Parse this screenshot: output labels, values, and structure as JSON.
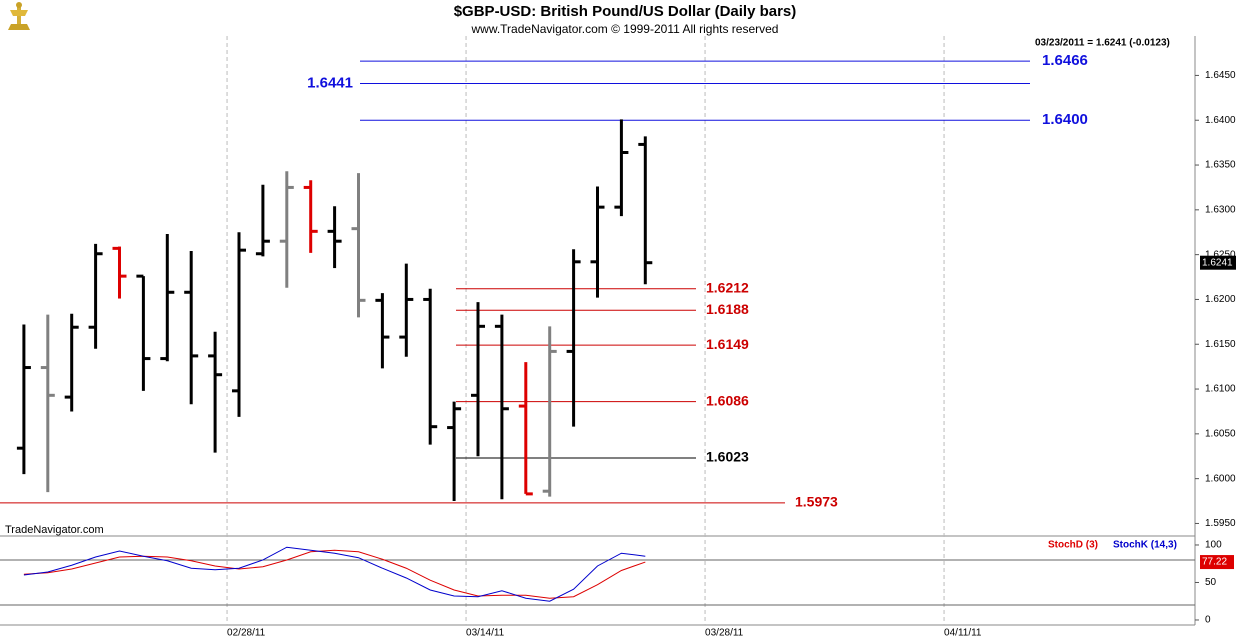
{
  "chart_data": [
    {
      "type": "ohlc",
      "title": "$GBP-USD:  British Pound/US Dollar  (Daily bars)",
      "subtitle": "www.TradeNavigator.com © 1999-2011 All rights reserved",
      "info": "03/23/2011 = 1.6241 (-0.0123)",
      "watermark": "TradeNavigator.com",
      "x": [
        "02/15/11",
        "02/16/11",
        "02/17/11",
        "02/18/11",
        "02/21/11",
        "02/22/11",
        "02/23/11",
        "02/24/11",
        "02/25/11",
        "02/28/11",
        "03/01/11",
        "03/02/11",
        "03/03/11",
        "03/04/11",
        "03/07/11",
        "03/08/11",
        "03/09/11",
        "03/10/11",
        "03/11/11",
        "03/14/11",
        "03/15/11",
        "03/16/11",
        "03/17/11",
        "03/18/11",
        "03/21/11",
        "03/22/11",
        "03/23/11"
      ],
      "open": [
        1.6034,
        1.6124,
        1.6091,
        1.6169,
        1.6257,
        1.6226,
        1.6134,
        1.6208,
        1.6137,
        1.6098,
        1.6251,
        1.6265,
        1.6325,
        1.6276,
        1.6279,
        1.6199,
        1.6158,
        1.62,
        1.6057,
        1.6093,
        1.617,
        1.6081,
        1.5986,
        1.6142,
        1.6242,
        1.6303,
        1.6373
      ],
      "high": [
        1.6172,
        1.6183,
        1.6184,
        1.6262,
        1.6259,
        1.6226,
        1.6273,
        1.6254,
        1.6164,
        1.6275,
        1.6328,
        1.6343,
        1.6333,
        1.6304,
        1.6341,
        1.6207,
        1.624,
        1.6212,
        1.6086,
        1.6197,
        1.6183,
        1.613,
        1.617,
        1.6256,
        1.6326,
        1.6401,
        1.6382
      ],
      "low": [
        1.6005,
        1.5985,
        1.6075,
        1.6145,
        1.6201,
        1.6098,
        1.6131,
        1.6083,
        1.6029,
        1.6069,
        1.6248,
        1.6213,
        1.6252,
        1.6235,
        1.618,
        1.6123,
        1.6136,
        1.6038,
        1.5975,
        1.6025,
        1.5977,
        1.5983,
        1.598,
        1.6058,
        1.6202,
        1.6293,
        1.6217
      ],
      "close": [
        1.6124,
        1.6093,
        1.6169,
        1.6251,
        1.6226,
        1.6134,
        1.6208,
        1.6137,
        1.6116,
        1.6255,
        1.6265,
        1.6325,
        1.6276,
        1.6265,
        1.6199,
        1.6158,
        1.62,
        1.6058,
        1.6078,
        1.617,
        1.6078,
        1.5983,
        1.6142,
        1.6242,
        1.6303,
        1.6364,
        1.6241
      ],
      "colors": [
        "#000000",
        "#808080",
        "#000000",
        "#000000",
        "#dd0000",
        "#000000",
        "#000000",
        "#000000",
        "#000000",
        "#000000",
        "#000000",
        "#808080",
        "#dd0000",
        "#000000",
        "#808080",
        "#000000",
        "#000000",
        "#000000",
        "#000000",
        "#000000",
        "#000000",
        "#dd0000",
        "#808080",
        "#000000",
        "#000000",
        "#000000",
        "#000000"
      ],
      "levels": [
        {
          "value": 1.6466,
          "label": "1.6466",
          "color": "#1010dd"
        },
        {
          "value": 1.6441,
          "label": "1.6441",
          "color": "#1010dd"
        },
        {
          "value": 1.64,
          "label": "1.6400",
          "color": "#1010dd"
        },
        {
          "value": 1.6212,
          "label": "1.6212",
          "color": "#cc0000"
        },
        {
          "value": 1.6188,
          "label": "1.6188",
          "color": "#cc0000"
        },
        {
          "value": 1.6149,
          "label": "1.6149",
          "color": "#cc0000"
        },
        {
          "value": 1.6086,
          "label": "1.6086",
          "color": "#cc0000"
        },
        {
          "value": 1.6023,
          "label": "1.6023",
          "color": "#000000"
        },
        {
          "value": 1.5973,
          "label": "1.5973",
          "color": "#cc0000"
        }
      ],
      "xlim": [
        "02/14/11",
        "04/25/11"
      ],
      "xticks": [
        "02/28/11",
        "03/14/11",
        "03/28/11",
        "04/11/11"
      ],
      "ylim": [
        1.5936,
        1.6494
      ],
      "yticks": [
        {
          "value": 1.595,
          "label": "1.5950"
        },
        {
          "value": 1.6,
          "label": "1.6000"
        },
        {
          "value": 1.605,
          "label": "1.6050"
        },
        {
          "value": 1.61,
          "label": "1.6100"
        },
        {
          "value": 1.615,
          "label": "1.6150"
        },
        {
          "value": 1.62,
          "label": "1.6200"
        },
        {
          "value": 1.625,
          "label": "1.6250"
        },
        {
          "value": 1.63,
          "label": "1.6300"
        },
        {
          "value": 1.635,
          "label": "1.6350"
        },
        {
          "value": 1.64,
          "label": "1.6400"
        },
        {
          "value": 1.645,
          "label": "1.6450"
        }
      ]
    },
    {
      "type": "line",
      "series": [
        {
          "name": "StochD (3)",
          "color": "#dd0000",
          "values": [
            61,
            63,
            68,
            76,
            84,
            85,
            84,
            79,
            72,
            68,
            71,
            80,
            91,
            93,
            91,
            81,
            69,
            53,
            40,
            32,
            33,
            33,
            29,
            31,
            47,
            66,
            77.22
          ]
        },
        {
          "name": "StochK (14,3)",
          "color": "#0000cc",
          "values": [
            60,
            64,
            73,
            84,
            92,
            85,
            79,
            69,
            67,
            69,
            80,
            97,
            93,
            89,
            83,
            69,
            56,
            40,
            32,
            31,
            39,
            29,
            25,
            41,
            72,
            89,
            85
          ]
        }
      ],
      "hlines": [
        80,
        20
      ],
      "ylim": [
        -6.7,
        109.3
      ],
      "yticks": [
        0,
        50,
        100
      ]
    }
  ]
}
